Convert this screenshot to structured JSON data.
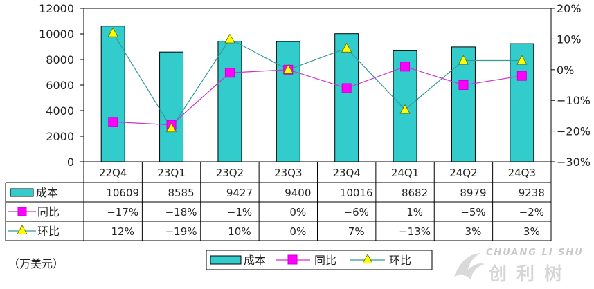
{
  "chart_data": {
    "type": "bar",
    "categories": [
      "22Q4",
      "23Q1",
      "23Q2",
      "23Q3",
      "23Q4",
      "24Q1",
      "24Q2",
      "24Q3"
    ],
    "series": [
      {
        "name": "成本",
        "kind": "bar",
        "axis": "left",
        "values": [
          10609,
          8585,
          9427,
          9400,
          10016,
          8682,
          8979,
          9238
        ],
        "labels": [
          "10609",
          "8585",
          "9427",
          "9400",
          "10016",
          "8682",
          "8979",
          "9238"
        ],
        "color": "#33CCCC"
      },
      {
        "name": "同比",
        "kind": "line",
        "axis": "right",
        "values": [
          -17,
          -18,
          -1,
          0,
          -6,
          1,
          -5,
          -2
        ],
        "labels": [
          "−17%",
          "−18%",
          "−1%",
          "0%",
          "−6%",
          "1%",
          "−5%",
          "−2%"
        ],
        "color": "#CC33CC",
        "marker": "square",
        "marker_color": "#FF00FF"
      },
      {
        "name": "环比",
        "kind": "line",
        "axis": "right",
        "values": [
          12,
          -19,
          10,
          0,
          7,
          -13,
          3,
          3
        ],
        "labels": [
          "12%",
          "−19%",
          "10%",
          "0%",
          "7%",
          "−13%",
          "3%",
          "3%"
        ],
        "color": "#339999",
        "marker": "triangle",
        "marker_color": "#FFFF00"
      }
    ],
    "left_axis": {
      "ylim": [
        0,
        12000
      ],
      "ticks": [
        "0",
        "2000",
        "4000",
        "6000",
        "8000",
        "10000",
        "12000"
      ]
    },
    "right_axis": {
      "ylim": [
        -30,
        20
      ],
      "ticks": [
        "−30%",
        "−20%",
        "−10%",
        "0%",
        "10%",
        "20%"
      ]
    },
    "data_table": true,
    "legend_position": "bottom",
    "grid": false
  },
  "unit_label": "（万美元）",
  "watermark": {
    "latin": "CHUANG LI SHU",
    "chinese": "创利树"
  }
}
